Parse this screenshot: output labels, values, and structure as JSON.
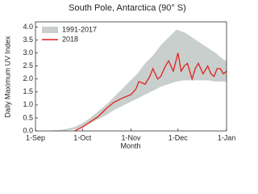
{
  "chart_data": {
    "type": "line",
    "title": "South Pole, Antarctica (90° S)",
    "xlabel": "Month",
    "ylabel": "Daily Maximum UV Index",
    "xlim": [
      0,
      122
    ],
    "ylim": [
      0,
      4.2
    ],
    "xticks": [
      {
        "value": 0,
        "label": "1-Sep"
      },
      {
        "value": 30,
        "label": "1-Oct"
      },
      {
        "value": 61,
        "label": "1-Nov"
      },
      {
        "value": 91,
        "label": "1-Dec"
      },
      {
        "value": 122,
        "label": "1-Jan"
      }
    ],
    "yticks": [
      {
        "value": 0,
        "label": "0.0"
      },
      {
        "value": 0.5,
        "label": "0.5"
      },
      {
        "value": 1,
        "label": "1.0"
      },
      {
        "value": 1.5,
        "label": "1.5"
      },
      {
        "value": 2,
        "label": "2.0"
      },
      {
        "value": 2.5,
        "label": "2.5"
      },
      {
        "value": 3,
        "label": "3.0"
      },
      {
        "value": 3.5,
        "label": "3.5"
      },
      {
        "value": 4,
        "label": "4.0"
      }
    ],
    "legend": "upper left",
    "series": [
      {
        "name": "1991-2017",
        "color": "#c9cfcc",
        "x": [
          10,
          15,
          20,
          25,
          30,
          35,
          40,
          45,
          50,
          55,
          60,
          65,
          70,
          75,
          80,
          85,
          90,
          95,
          100,
          105,
          110,
          115,
          120,
          122
        ],
        "lower": [
          0,
          0,
          0.02,
          0.06,
          0.15,
          0.3,
          0.45,
          0.6,
          0.8,
          0.95,
          1.1,
          1.25,
          1.4,
          1.55,
          1.7,
          1.8,
          1.9,
          1.95,
          1.95,
          1.95,
          1.95,
          1.9,
          1.9,
          1.9
        ],
        "upper": [
          0.02,
          0.03,
          0.08,
          0.15,
          0.3,
          0.5,
          0.75,
          1.0,
          1.3,
          1.6,
          1.9,
          2.2,
          2.6,
          2.9,
          3.3,
          3.6,
          3.9,
          3.8,
          3.6,
          3.4,
          3.2,
          3.0,
          2.75,
          2.7
        ]
      },
      {
        "name": "2018",
        "color": "#e0201b",
        "x": [
          25,
          30,
          35,
          40,
          45,
          50,
          55,
          61,
          64,
          66,
          70,
          73,
          75,
          78,
          80,
          83,
          85,
          88,
          91,
          93,
          95,
          97,
          100,
          102,
          104,
          107,
          110,
          112,
          114,
          116,
          118,
          120,
          122
        ],
        "values": [
          0,
          0.15,
          0.35,
          0.55,
          0.85,
          1.1,
          1.25,
          1.4,
          1.6,
          1.9,
          1.8,
          2.1,
          2.4,
          2.0,
          2.1,
          2.5,
          2.7,
          2.3,
          3.0,
          2.3,
          2.5,
          2.6,
          2.0,
          2.4,
          2.6,
          2.2,
          2.5,
          2.2,
          2.1,
          2.4,
          2.4,
          2.2,
          2.3
        ]
      }
    ]
  }
}
